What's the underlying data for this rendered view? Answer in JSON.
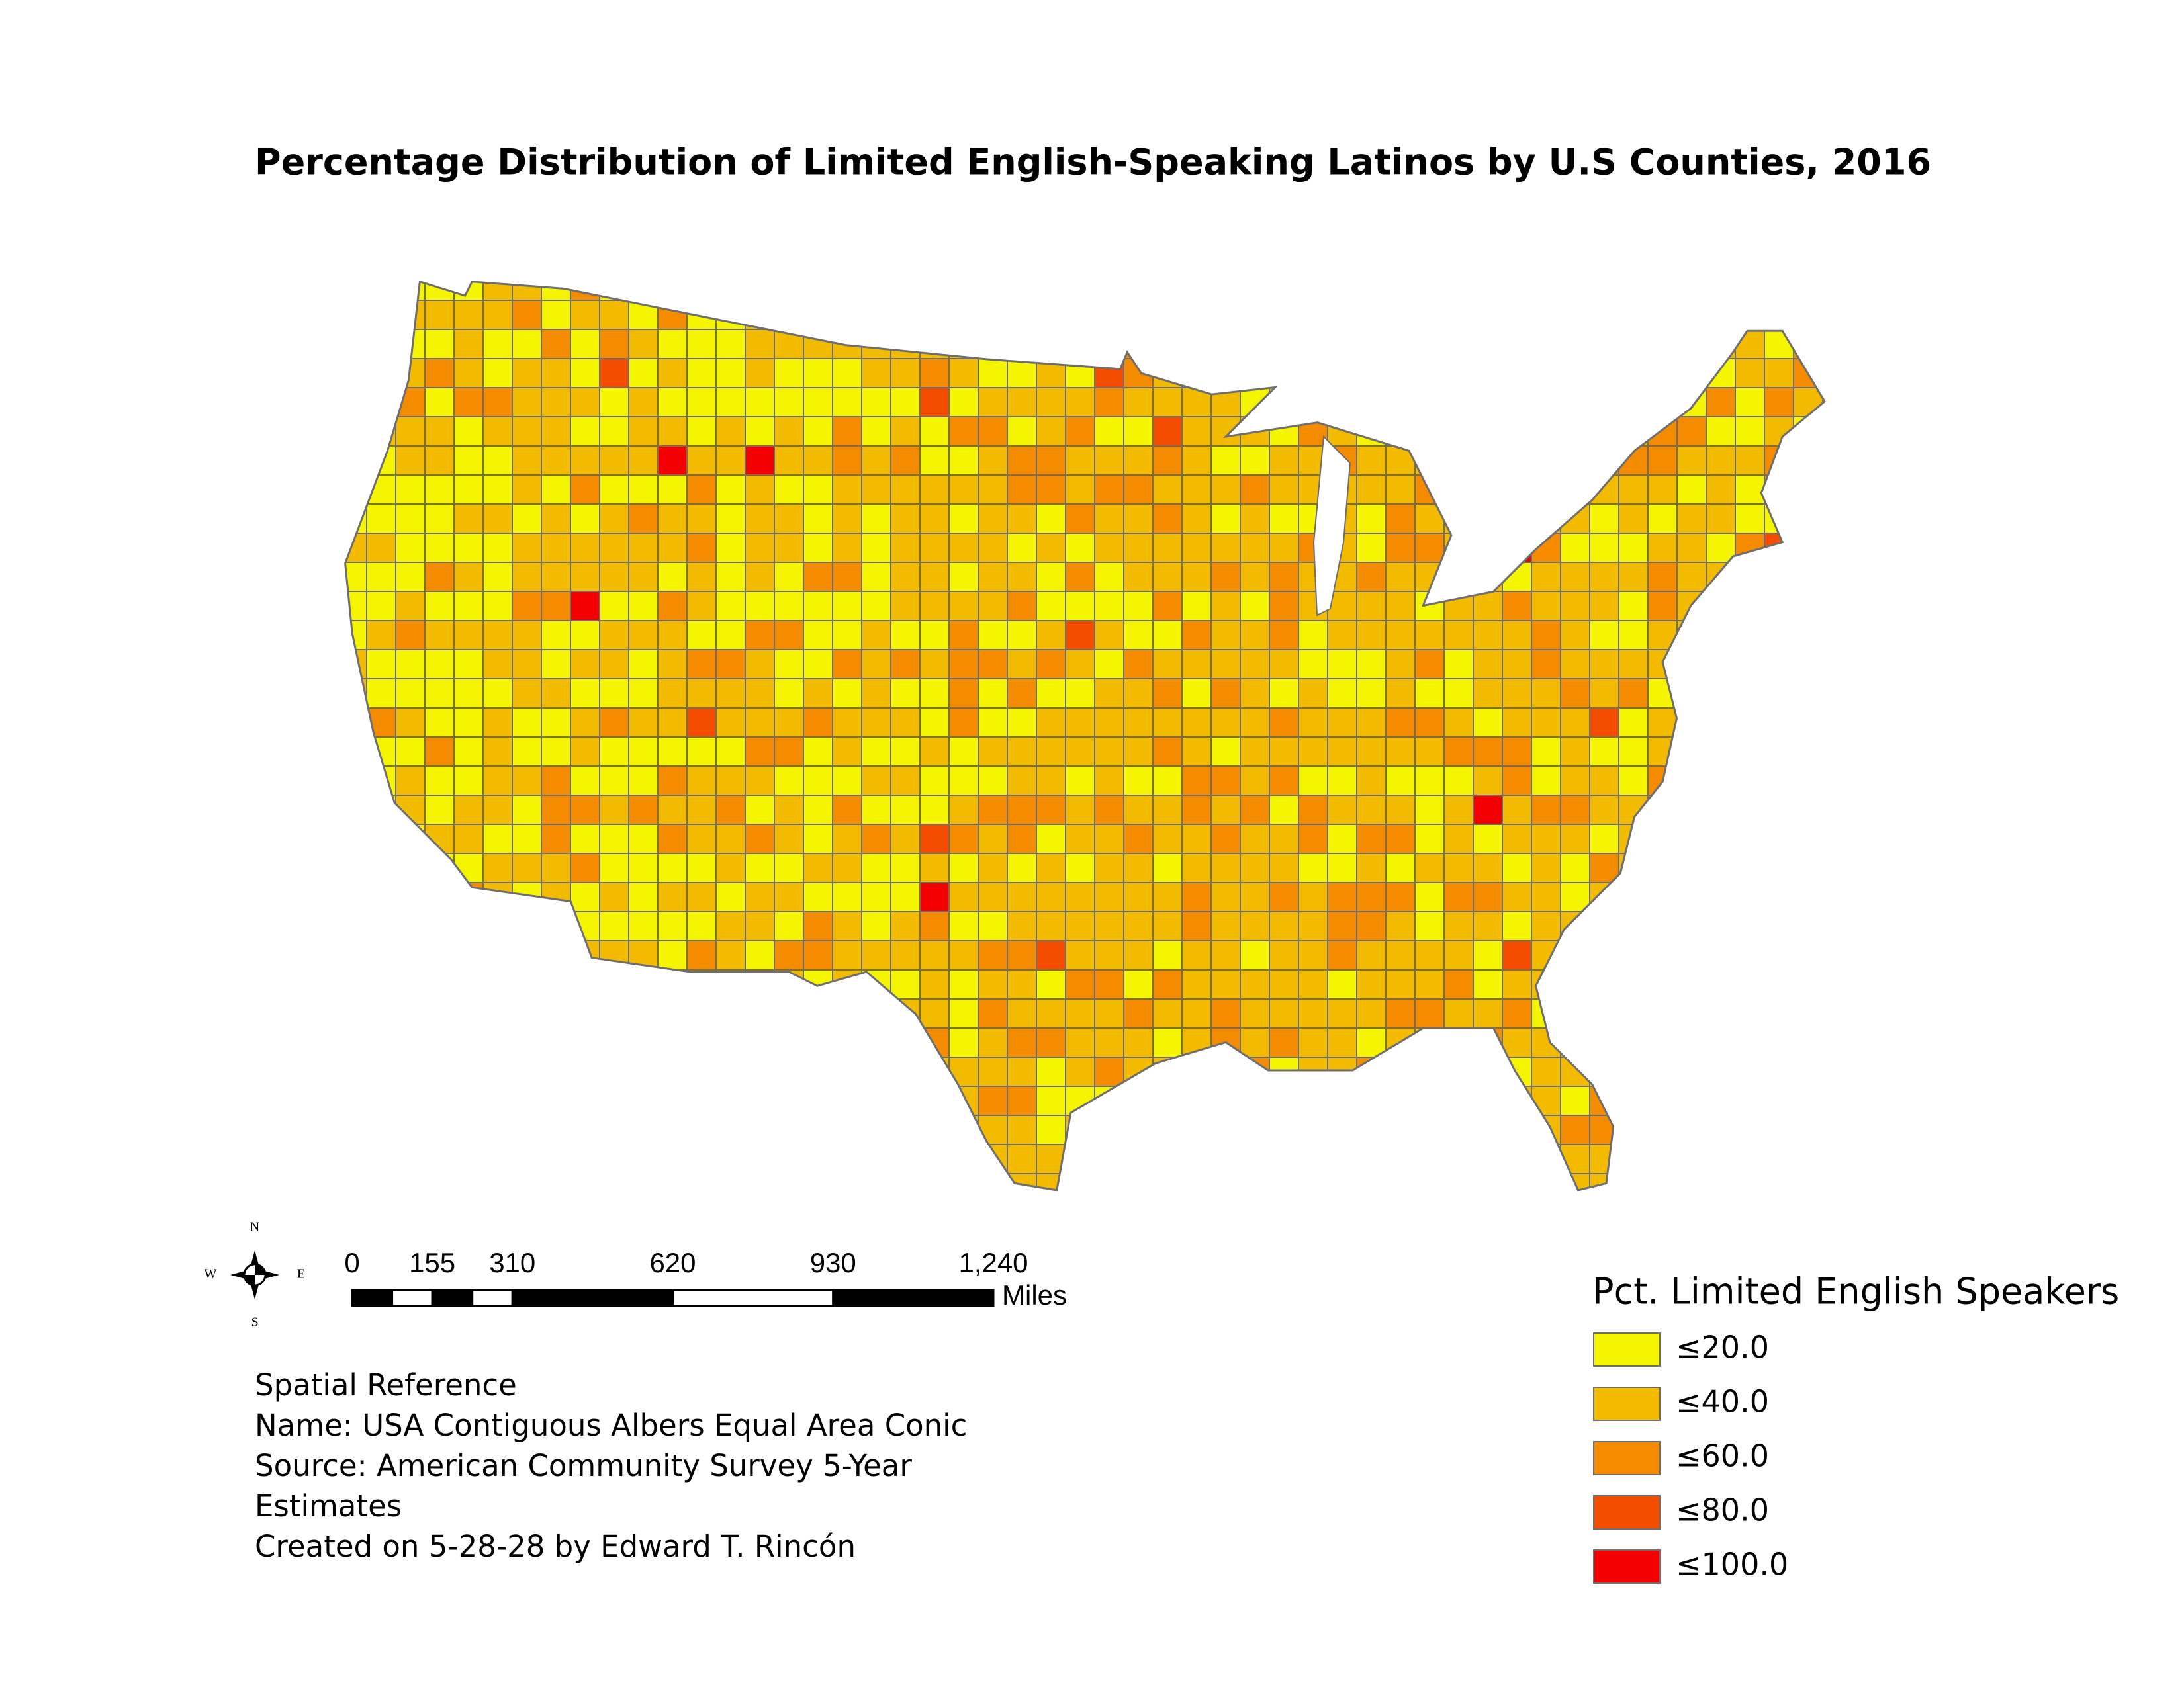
{
  "title": "Percentage Distribution of Limited English-Speaking Latinos by U.S Counties, 2016",
  "compass": {
    "n": "N",
    "e": "E",
    "s": "S",
    "w": "W"
  },
  "scale_bar": {
    "ticks": [
      0,
      155,
      310,
      620,
      930,
      {
        "value": 1240,
        "label": "1,240"
      }
    ],
    "unit": "Miles"
  },
  "notes": [
    "Spatial Reference",
    "Name: USA Contiguous Albers Equal Area Conic",
    "Source: American Community Survey 5-Year",
    "Estimates",
    "Created on 5-28-28 by Edward T. Rincón"
  ],
  "legend": {
    "title": "Pct. Limited English Speakers",
    "items": [
      {
        "label": "≤20.0",
        "color": "#f5f500"
      },
      {
        "label": "≤40.0",
        "color": "#f2bb00"
      },
      {
        "label": "≤60.0",
        "color": "#f58c00"
      },
      {
        "label": "≤80.0",
        "color": "#f54d00"
      },
      {
        "label": "≤100.0",
        "color": "#f50000"
      }
    ]
  }
}
